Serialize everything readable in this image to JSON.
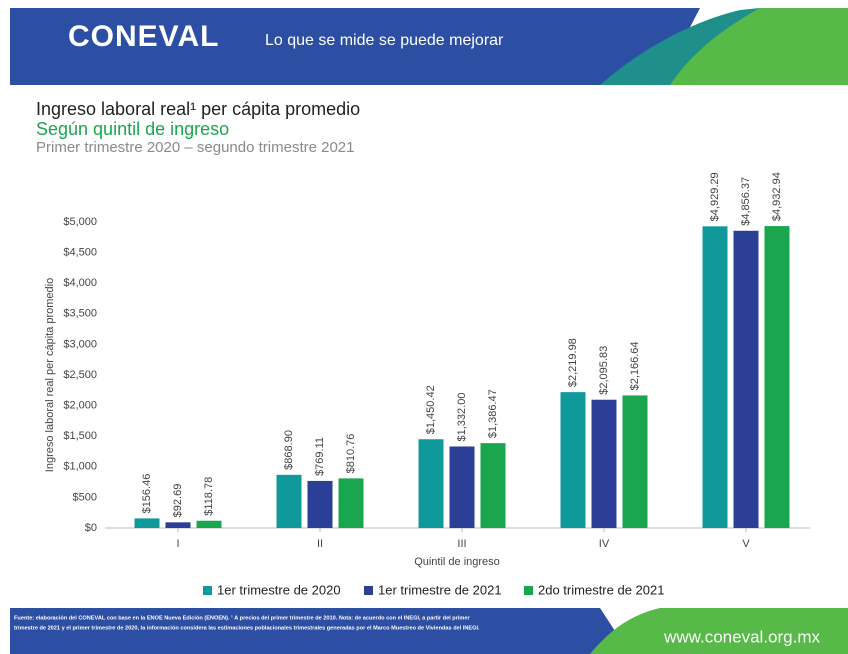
{
  "header": {
    "logo": "CONEVAL",
    "tagline": "Lo que se mide se puede mejorar"
  },
  "chart_data": {
    "type": "bar",
    "title": "Ingreso laboral real¹ per cápita promedio",
    "subtitle": "Según quintil de ingreso",
    "period": "Primer trimestre 2020 – segundo trimestre 2021",
    "y_label": "Ingreso laboral real  per cápita promedio",
    "x_label": "Quintil de ingreso",
    "categories": [
      "I",
      "II",
      "III",
      "IV",
      "V"
    ],
    "series": [
      {
        "name": "1er trimestre de 2020",
        "color": "#10999a",
        "values": [
          156.46,
          868.9,
          1450.42,
          2219.98,
          4929.29
        ],
        "value_labels": [
          "$156.46",
          "$868.90",
          "$1,450.42",
          "$2,219.98",
          "$4,929.29"
        ]
      },
      {
        "name": "1er trimestre de 2021",
        "color": "#2b3f97",
        "values": [
          92.69,
          769.11,
          1332.0,
          2095.83,
          4856.37
        ],
        "value_labels": [
          "$92.69",
          "$769.11",
          "$1,332.00",
          "$2,095.83",
          "$4,856.37"
        ]
      },
      {
        "name": "2do trimestre de 2021",
        "color": "#1aa64f",
        "values": [
          118.78,
          810.76,
          1386.47,
          2166.64,
          4932.94
        ],
        "value_labels": [
          "$118.78",
          "$810.76",
          "$1,386.47",
          "$2,166.64",
          "$4,932.94"
        ]
      }
    ],
    "ylim": [
      0,
      5000
    ],
    "yticks": [
      {
        "value": 0,
        "label": "$0"
      },
      {
        "value": 500,
        "label": "$500"
      },
      {
        "value": 1000,
        "label": "$1,000"
      },
      {
        "value": 1500,
        "label": "$1,500"
      },
      {
        "value": 2000,
        "label": "$2,000"
      },
      {
        "value": 2500,
        "label": "$2,500"
      },
      {
        "value": 3000,
        "label": "$3,000"
      },
      {
        "value": 3500,
        "label": "$3,500"
      },
      {
        "value": 4000,
        "label": "$4,000"
      },
      {
        "value": 4500,
        "label": "$4,500"
      },
      {
        "value": 5000,
        "label": "$5,000"
      }
    ],
    "grid": false,
    "legend": "bottom"
  },
  "footer": {
    "source": [
      "Fuente: elaboración del CONEVAL con base en la ENOE Nueva Edición (ENOEN). ¹ A precios del primer trimestre de 2010. Nota: de acuerdo con el INEGI, a partir del primer",
      "trimestre de 2021 y el primer trimestre de 2020, la información considera las estimaciones poblacionales trimestrales generadas por el Marco Muestreo de Viviendas del INEGI."
    ],
    "url": "www.coneval.org.mx"
  }
}
